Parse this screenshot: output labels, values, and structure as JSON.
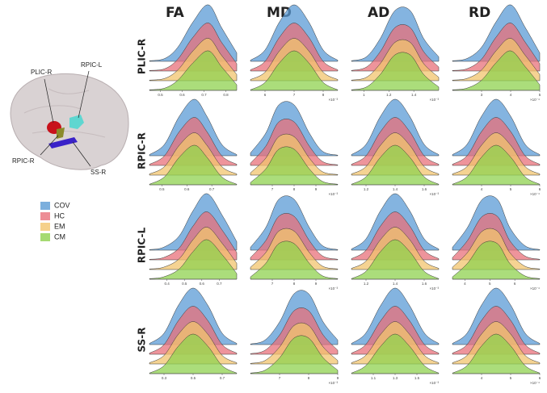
{
  "columns": [
    "FA",
    "MD",
    "AD",
    "RD"
  ],
  "rows": [
    "PLIC-R",
    "RPIC-R",
    "RPIC-L",
    "SS-R"
  ],
  "brain": {
    "labels": [
      "PLIC-R",
      "RPIC-L",
      "RPIC-R",
      "SS-R"
    ]
  },
  "legend": [
    {
      "name": "COV",
      "color": "#5b9bd5"
    },
    {
      "name": "HC",
      "color": "#e8707a"
    },
    {
      "name": "EM",
      "color": "#f2c46e"
    },
    {
      "name": "CM",
      "color": "#8fd14f"
    }
  ],
  "chart_data": [
    {
      "type": "ridge",
      "xlim": [
        0.45,
        0.85
      ],
      "xticks": [
        0.5,
        0.6,
        0.7,
        0.8
      ],
      "x": [
        0.45,
        0.52,
        0.58,
        0.65,
        0.72,
        0.78,
        0.85
      ],
      "series": [
        {
          "values": [
            0.01,
            0.05,
            0.25,
            0.7,
            1,
            0.6,
            0.15
          ]
        },
        {
          "values": [
            0.01,
            0.04,
            0.21,
            0.6,
            0.85,
            0.51,
            0.13
          ]
        },
        {
          "values": [
            0.01,
            0.04,
            0.19,
            0.53,
            0.75,
            0.45,
            0.11
          ]
        },
        {
          "values": [
            0.01,
            0.04,
            0.18,
            0.49,
            0.7,
            0.42,
            0.1
          ]
        }
      ]
    },
    {
      "type": "ridge",
      "xlim": [
        5.5,
        8.5
      ],
      "xticks": [
        6,
        7,
        8
      ],
      "xlabel": "×10⁻³",
      "x": [
        5.5,
        6,
        6.5,
        7,
        7.5,
        8,
        8.5
      ],
      "series": [
        {
          "values": [
            0.02,
            0.2,
            0.7,
            1,
            0.7,
            0.2,
            0.02
          ]
        },
        {
          "values": [
            0.02,
            0.17,
            0.6,
            0.85,
            0.6,
            0.17,
            0.02
          ]
        },
        {
          "values": [
            0.02,
            0.15,
            0.53,
            0.75,
            0.53,
            0.15,
            0.02
          ]
        },
        {
          "values": [
            0.01,
            0.14,
            0.49,
            0.7,
            0.49,
            0.14,
            0.01
          ]
        }
      ]
    },
    {
      "type": "ridge",
      "xlim": [
        0.9,
        1.6
      ],
      "xticks": [
        1,
        1.2,
        1.4
      ],
      "xlabel": "×10⁻³",
      "x": [
        0.9,
        1.02,
        1.13,
        1.25,
        1.37,
        1.48,
        1.6
      ],
      "series": [
        {
          "values": [
            0.01,
            0.08,
            0.4,
            0.9,
            0.9,
            0.4,
            0.08
          ]
        },
        {
          "values": [
            0.01,
            0.07,
            0.34,
            0.77,
            0.77,
            0.34,
            0.07
          ]
        },
        {
          "values": [
            0.01,
            0.06,
            0.3,
            0.68,
            0.68,
            0.3,
            0.06
          ]
        },
        {
          "values": [
            0.01,
            0.06,
            0.28,
            0.63,
            0.63,
            0.28,
            0.06
          ]
        }
      ]
    },
    {
      "type": "ridge",
      "xlim": [
        2,
        5
      ],
      "xticks": [
        3,
        4,
        5
      ],
      "xlabel": "×10⁻⁴",
      "x": [
        2,
        2.5,
        3,
        3.5,
        4,
        4.5,
        5
      ],
      "series": [
        {
          "values": [
            0.01,
            0.05,
            0.25,
            0.7,
            1,
            0.6,
            0.15
          ]
        },
        {
          "values": [
            0.01,
            0.04,
            0.21,
            0.6,
            0.85,
            0.51,
            0.13
          ]
        },
        {
          "values": [
            0.01,
            0.04,
            0.19,
            0.53,
            0.75,
            0.45,
            0.11
          ]
        },
        {
          "values": [
            0.01,
            0.04,
            0.18,
            0.49,
            0.7,
            0.42,
            0.1
          ]
        }
      ]
    },
    {
      "type": "ridge",
      "xlim": [
        0.45,
        0.8
      ],
      "xticks": [
        0.5,
        0.6,
        0.7
      ],
      "x": [
        0.45,
        0.51,
        0.57,
        0.63,
        0.68,
        0.74,
        0.8
      ],
      "series": [
        {
          "values": [
            0.02,
            0.2,
            0.7,
            1,
            0.7,
            0.2,
            0.02
          ]
        },
        {
          "values": [
            0.02,
            0.17,
            0.6,
            0.85,
            0.6,
            0.17,
            0.02
          ]
        },
        {
          "values": [
            0.02,
            0.15,
            0.53,
            0.75,
            0.53,
            0.15,
            0.02
          ]
        },
        {
          "values": [
            0.01,
            0.14,
            0.49,
            0.7,
            0.49,
            0.14,
            0.01
          ]
        }
      ]
    },
    {
      "type": "ridge",
      "xlim": [
        6,
        10
      ],
      "xticks": [
        7,
        8,
        9
      ],
      "xlabel": "×10⁻³",
      "x": [
        6,
        6.7,
        7.3,
        8,
        8.7,
        9.3,
        10
      ],
      "series": [
        {
          "values": [
            0.05,
            0.4,
            0.9,
            0.9,
            0.4,
            0.08,
            0.01
          ]
        },
        {
          "values": [
            0.04,
            0.34,
            0.77,
            0.77,
            0.34,
            0.07,
            0.01
          ]
        },
        {
          "values": [
            0.04,
            0.3,
            0.68,
            0.68,
            0.3,
            0.06,
            0.01
          ]
        },
        {
          "values": [
            0.04,
            0.28,
            0.63,
            0.63,
            0.28,
            0.06,
            0.01
          ]
        }
      ]
    },
    {
      "type": "ridge",
      "xlim": [
        1.1,
        1.7
      ],
      "xticks": [
        1.2,
        1.4,
        1.6
      ],
      "xlabel": "×10⁻³",
      "x": [
        1.1,
        1.2,
        1.3,
        1.4,
        1.5,
        1.6,
        1.7
      ],
      "series": [
        {
          "values": [
            0.02,
            0.2,
            0.7,
            1,
            0.7,
            0.2,
            0.02
          ]
        },
        {
          "values": [
            0.02,
            0.17,
            0.6,
            0.85,
            0.6,
            0.17,
            0.02
          ]
        },
        {
          "values": [
            0.02,
            0.15,
            0.53,
            0.75,
            0.53,
            0.15,
            0.02
          ]
        },
        {
          "values": [
            0.01,
            0.14,
            0.49,
            0.7,
            0.49,
            0.14,
            0.01
          ]
        }
      ]
    },
    {
      "type": "ridge",
      "xlim": [
        3,
        6
      ],
      "xticks": [
        4,
        5,
        6
      ],
      "xlabel": "×10⁻⁴",
      "x": [
        3,
        3.5,
        4,
        4.5,
        5,
        5.5,
        6
      ],
      "series": [
        {
          "values": [
            0.02,
            0.2,
            0.7,
            1,
            0.7,
            0.2,
            0.02
          ]
        },
        {
          "values": [
            0.02,
            0.17,
            0.6,
            0.85,
            0.6,
            0.17,
            0.02
          ]
        },
        {
          "values": [
            0.02,
            0.15,
            0.53,
            0.75,
            0.53,
            0.15,
            0.02
          ]
        },
        {
          "values": [
            0.01,
            0.14,
            0.49,
            0.7,
            0.49,
            0.14,
            0.01
          ]
        }
      ]
    },
    {
      "type": "ridge",
      "xlim": [
        0.3,
        0.8
      ],
      "xticks": [
        0.4,
        0.5,
        0.6,
        0.7
      ],
      "x": [
        0.3,
        0.38,
        0.47,
        0.55,
        0.63,
        0.72,
        0.8
      ],
      "series": [
        {
          "values": [
            0.01,
            0.05,
            0.25,
            0.7,
            1,
            0.6,
            0.15
          ]
        },
        {
          "values": [
            0.01,
            0.04,
            0.21,
            0.6,
            0.85,
            0.51,
            0.13
          ]
        },
        {
          "values": [
            0.01,
            0.04,
            0.19,
            0.53,
            0.75,
            0.45,
            0.11
          ]
        },
        {
          "values": [
            0.01,
            0.04,
            0.18,
            0.49,
            0.7,
            0.42,
            0.1
          ]
        }
      ]
    },
    {
      "type": "ridge",
      "xlim": [
        6,
        10
      ],
      "xticks": [
        7,
        8,
        9
      ],
      "xlabel": "×10⁻³",
      "x": [
        6,
        6.7,
        7.3,
        8,
        8.7,
        9.3,
        10
      ],
      "series": [
        {
          "values": [
            0.05,
            0.4,
            0.9,
            0.9,
            0.4,
            0.08,
            0.01
          ]
        },
        {
          "values": [
            0.04,
            0.34,
            0.77,
            0.77,
            0.34,
            0.07,
            0.01
          ]
        },
        {
          "values": [
            0.04,
            0.3,
            0.68,
            0.68,
            0.3,
            0.06,
            0.01
          ]
        },
        {
          "values": [
            0.04,
            0.28,
            0.63,
            0.63,
            0.28,
            0.06,
            0.01
          ]
        }
      ]
    },
    {
      "type": "ridge",
      "xlim": [
        1.1,
        1.7
      ],
      "xticks": [
        1.2,
        1.4,
        1.6
      ],
      "xlabel": "×10⁻³",
      "x": [
        1.1,
        1.2,
        1.3,
        1.4,
        1.5,
        1.6,
        1.7
      ],
      "series": [
        {
          "values": [
            0.02,
            0.2,
            0.7,
            1,
            0.7,
            0.2,
            0.02
          ]
        },
        {
          "values": [
            0.02,
            0.17,
            0.6,
            0.85,
            0.6,
            0.17,
            0.02
          ]
        },
        {
          "values": [
            0.02,
            0.15,
            0.53,
            0.75,
            0.53,
            0.15,
            0.02
          ]
        },
        {
          "values": [
            0.01,
            0.14,
            0.49,
            0.7,
            0.49,
            0.14,
            0.01
          ]
        }
      ]
    },
    {
      "type": "ridge",
      "xlim": [
        3.5,
        7
      ],
      "xticks": [
        4,
        5,
        6
      ],
      "xlabel": "×10⁻⁴",
      "x": [
        3.5,
        4.1,
        4.7,
        5.3,
        5.8,
        6.4,
        7
      ],
      "series": [
        {
          "values": [
            0.05,
            0.4,
            0.9,
            0.9,
            0.4,
            0.08,
            0.01
          ]
        },
        {
          "values": [
            0.04,
            0.34,
            0.77,
            0.77,
            0.34,
            0.07,
            0.01
          ]
        },
        {
          "values": [
            0.04,
            0.3,
            0.68,
            0.68,
            0.3,
            0.06,
            0.01
          ]
        },
        {
          "values": [
            0.04,
            0.28,
            0.63,
            0.63,
            0.28,
            0.06,
            0.01
          ]
        }
      ]
    },
    {
      "type": "ridge",
      "xlim": [
        0.2,
        0.8
      ],
      "xticks": [
        0.3,
        0.5,
        0.7
      ],
      "x": [
        0.2,
        0.3,
        0.4,
        0.5,
        0.6,
        0.7,
        0.8
      ],
      "series": [
        {
          "values": [
            0.02,
            0.2,
            0.7,
            1,
            0.7,
            0.2,
            0.02
          ]
        },
        {
          "values": [
            0.02,
            0.17,
            0.6,
            0.85,
            0.6,
            0.17,
            0.02
          ]
        },
        {
          "values": [
            0.02,
            0.15,
            0.53,
            0.75,
            0.53,
            0.15,
            0.02
          ]
        },
        {
          "values": [
            0.01,
            0.14,
            0.49,
            0.7,
            0.49,
            0.14,
            0.01
          ]
        }
      ]
    },
    {
      "type": "ridge",
      "xlim": [
        6,
        9
      ],
      "xticks": [
        7,
        8,
        9
      ],
      "xlabel": "×10⁻³",
      "x": [
        6,
        6.5,
        7,
        7.5,
        8,
        8.5,
        9
      ],
      "series": [
        {
          "values": [
            0.01,
            0.08,
            0.4,
            0.9,
            0.9,
            0.4,
            0.08
          ]
        },
        {
          "values": [
            0.01,
            0.07,
            0.34,
            0.77,
            0.77,
            0.34,
            0.07
          ]
        },
        {
          "values": [
            0.01,
            0.06,
            0.3,
            0.68,
            0.68,
            0.3,
            0.06
          ]
        },
        {
          "values": [
            0.01,
            0.06,
            0.28,
            0.63,
            0.63,
            0.28,
            0.06
          ]
        }
      ]
    },
    {
      "type": "ridge",
      "xlim": [
        0.9,
        1.7
      ],
      "xticks": [
        1.1,
        1.3,
        1.5
      ],
      "xlabel": "×10⁻³",
      "x": [
        0.9,
        1.03,
        1.17,
        1.3,
        1.43,
        1.57,
        1.7
      ],
      "series": [
        {
          "values": [
            0.02,
            0.2,
            0.7,
            1,
            0.7,
            0.2,
            0.02
          ]
        },
        {
          "values": [
            0.02,
            0.17,
            0.6,
            0.85,
            0.6,
            0.17,
            0.02
          ]
        },
        {
          "values": [
            0.02,
            0.15,
            0.53,
            0.75,
            0.53,
            0.15,
            0.02
          ]
        },
        {
          "values": [
            0.01,
            0.14,
            0.49,
            0.7,
            0.49,
            0.14,
            0.01
          ]
        }
      ]
    },
    {
      "type": "ridge",
      "xlim": [
        3,
        6
      ],
      "xticks": [
        4,
        5,
        6
      ],
      "xlabel": "×10⁻⁴",
      "x": [
        3,
        3.5,
        4,
        4.5,
        5,
        5.5,
        6
      ],
      "series": [
        {
          "values": [
            0.02,
            0.2,
            0.7,
            1,
            0.7,
            0.2,
            0.02
          ]
        },
        {
          "values": [
            0.02,
            0.17,
            0.6,
            0.85,
            0.6,
            0.17,
            0.02
          ]
        },
        {
          "values": [
            0.02,
            0.15,
            0.53,
            0.75,
            0.53,
            0.15,
            0.02
          ]
        },
        {
          "values": [
            0.01,
            0.14,
            0.49,
            0.7,
            0.49,
            0.14,
            0.01
          ]
        }
      ]
    }
  ]
}
